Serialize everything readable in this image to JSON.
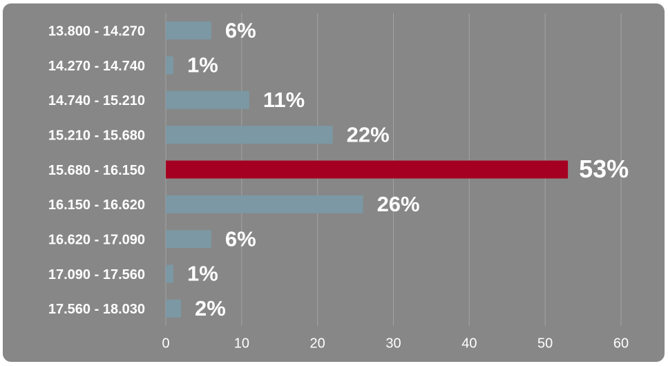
{
  "chart_data": {
    "type": "bar",
    "orientation": "horizontal",
    "categories": [
      "13.800 - 14.270",
      "14.270 - 14.740",
      "14.740 - 15.210",
      "15.210 - 15.680",
      "15.680 - 16.150",
      "16.150 - 16.620",
      "16.620 - 17.090",
      "17.090 - 17.560",
      "17.560 - 18.030"
    ],
    "values": [
      6,
      1,
      11,
      22,
      53,
      26,
      6,
      1,
      2
    ],
    "value_labels": [
      "6%",
      "1%",
      "11%",
      "22%",
      "53%",
      "26%",
      "6%",
      "1%",
      "2%"
    ],
    "colors": [
      "#7b98a4",
      "#7b98a4",
      "#7b98a4",
      "#7b98a4",
      "#a50021",
      "#7b98a4",
      "#7b98a4",
      "#7b98a4",
      "#7b98a4"
    ],
    "xlim": [
      0,
      60
    ],
    "xticks": [
      0,
      10,
      20,
      30,
      40,
      50,
      60
    ],
    "grid": true
  }
}
